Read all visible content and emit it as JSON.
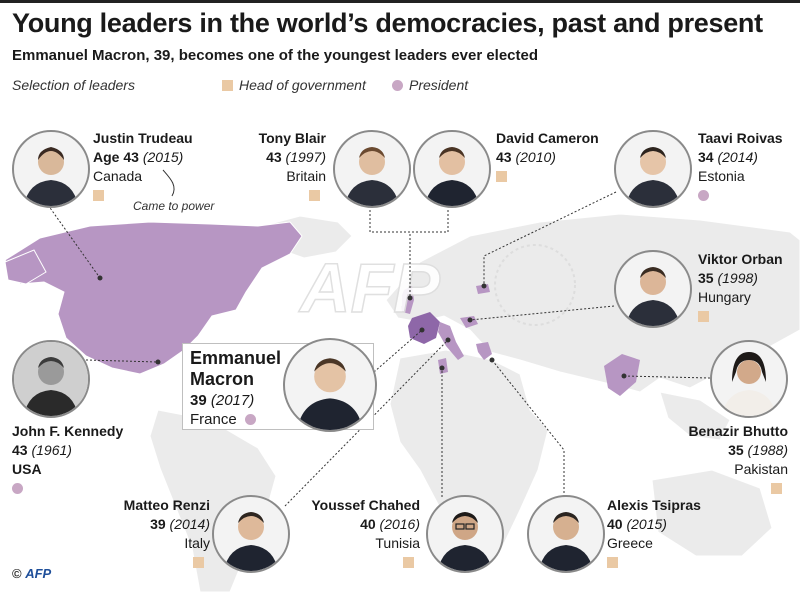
{
  "title": "Young leaders in the world’s democracies, past and present",
  "subtitle": "Emmanuel Macron, 39, becomes one of the youngest leaders ever elected",
  "legend": {
    "selection_label": "Selection of leaders",
    "head_of_government": "Head of government",
    "president": "President"
  },
  "colors": {
    "head_of_government": "#eac9a4",
    "president": "#c8a7c4",
    "highlighted_country": "#b796c3",
    "france": "#8e67a8",
    "land": "#ebebeb"
  },
  "annotation": "Came to power",
  "credit": {
    "symbol": "©",
    "brand": "AFP"
  },
  "watermark": "AFP",
  "leaders": {
    "trudeau": {
      "name": "Justin Trudeau",
      "age_prefix": "Age",
      "age": "43",
      "year": "(2015)",
      "country": "Canada",
      "role": "head_of_government",
      "icon": "person-portrait"
    },
    "blair": {
      "name": "Tony Blair",
      "age": "43",
      "year": "(1997)",
      "country": "Britain",
      "role": "head_of_government",
      "icon": "person-portrait"
    },
    "cameron": {
      "name": "David Cameron",
      "age": "43",
      "year": "(2010)",
      "country": "",
      "role": "head_of_government",
      "icon": "person-portrait"
    },
    "roivas": {
      "name": "Taavi Roivas",
      "age": "34",
      "year": "(2014)",
      "country": "Estonia",
      "role": "president",
      "icon": "person-portrait"
    },
    "orban": {
      "name": "Viktor Orban",
      "age": "35",
      "year": "(1998)",
      "country": "Hungary",
      "role": "head_of_government",
      "icon": "person-portrait"
    },
    "macron": {
      "name_first": "Emmanuel",
      "name_last": "Macron",
      "age": "39",
      "year": "(2017)",
      "country": "France",
      "role": "president",
      "icon": "person-portrait"
    },
    "kennedy": {
      "name": "John F. Kennedy",
      "age": "43",
      "year": "(1961)",
      "country": "USA",
      "role": "president",
      "icon": "person-portrait"
    },
    "bhutto": {
      "name": "Benazir Bhutto",
      "age": "35",
      "year": "(1988)",
      "country": "Pakistan",
      "role": "head_of_government",
      "icon": "person-portrait"
    },
    "renzi": {
      "name": "Matteo Renzi",
      "age": "39",
      "year": "(2014)",
      "country": "Italy",
      "role": "head_of_government",
      "icon": "person-portrait"
    },
    "chahed": {
      "name": "Youssef Chahed",
      "age": "40",
      "year": "(2016)",
      "country": "Tunisia",
      "role": "head_of_government",
      "icon": "person-portrait"
    },
    "tsipras": {
      "name": "Alexis Tsipras",
      "age": "40",
      "year": "(2015)",
      "country": "Greece",
      "role": "head_of_government",
      "icon": "person-portrait"
    }
  }
}
